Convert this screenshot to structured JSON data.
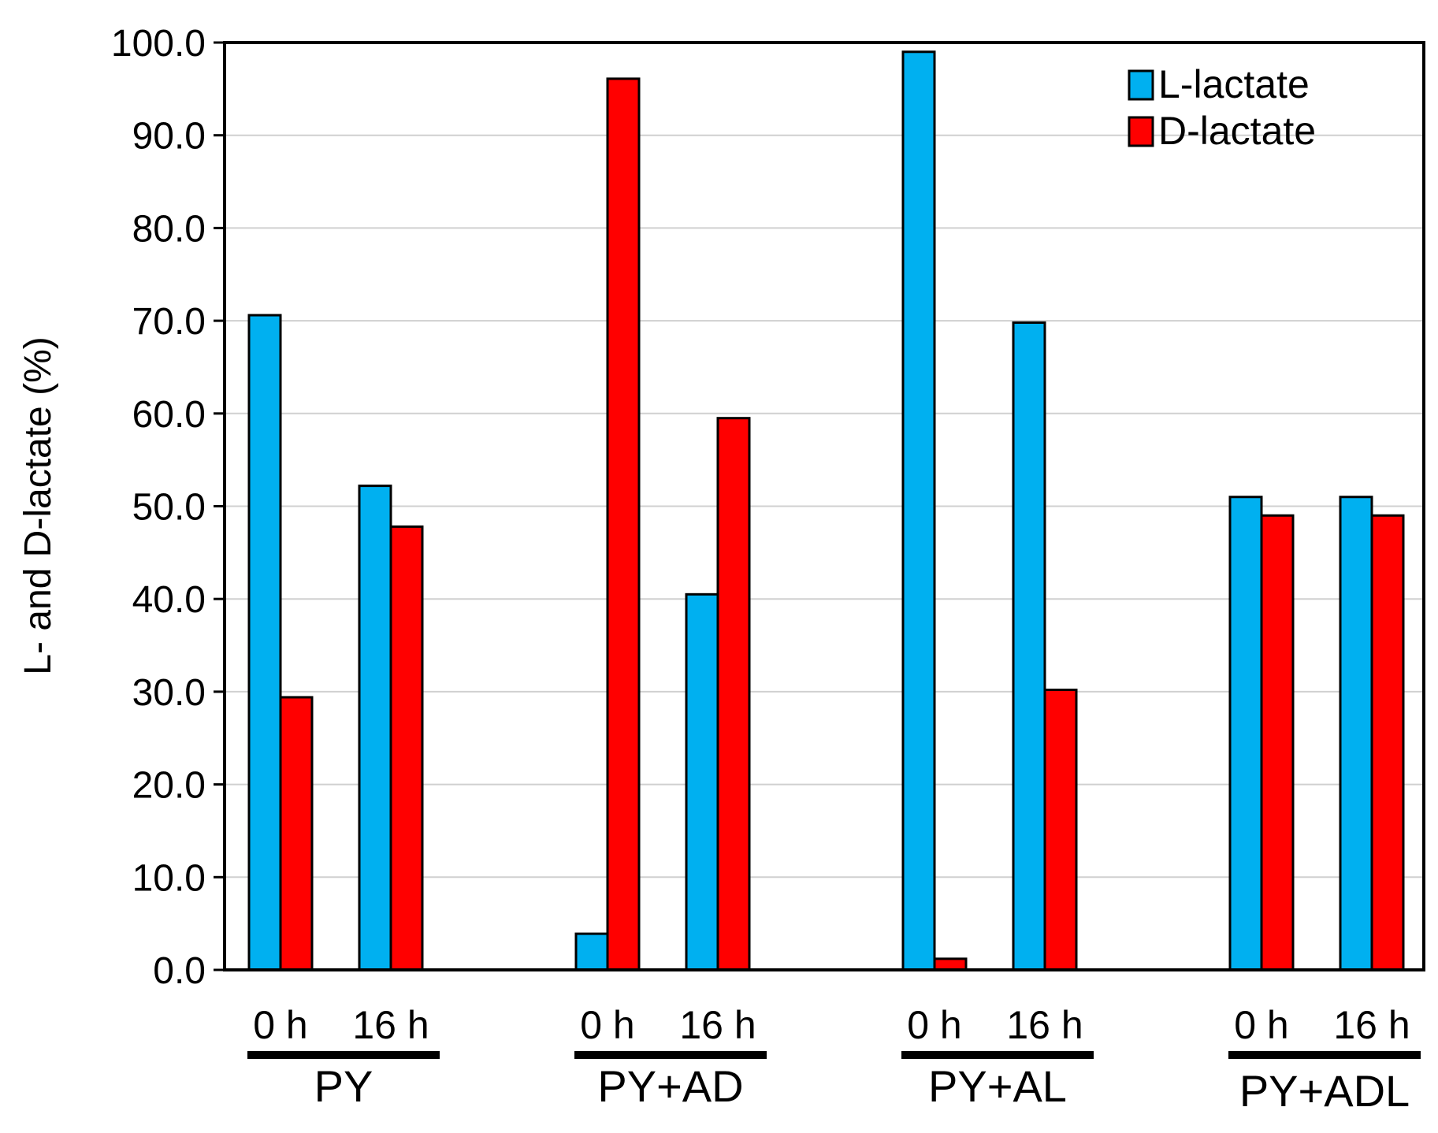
{
  "chart_data": {
    "type": "bar",
    "title": "",
    "ylabel": "L- and D-lactate (%)",
    "xlabel": "",
    "ylim": [
      0,
      100
    ],
    "y_ticks": [
      "0.0",
      "10.0",
      "20.0",
      "30.0",
      "40.0",
      "50.0",
      "60.0",
      "70.0",
      "80.0",
      "90.0",
      "100.0"
    ],
    "grid": "horizontal",
    "legend_position": "top-right",
    "groups": [
      {
        "label": "PY",
        "times": [
          "0 h",
          "16 h"
        ],
        "series": [
          {
            "name": "L-lactate",
            "values": [
              70.6,
              52.2
            ]
          },
          {
            "name": "D-lactate",
            "values": [
              29.4,
              47.8
            ]
          }
        ]
      },
      {
        "label": "PY+AD",
        "times": [
          "0 h",
          "16 h"
        ],
        "series": [
          {
            "name": "L-lactate",
            "values": [
              3.9,
              40.5
            ]
          },
          {
            "name": "D-lactate",
            "values": [
              96.1,
              59.5
            ]
          }
        ]
      },
      {
        "label": "PY+AL",
        "times": [
          "0 h",
          "16 h"
        ],
        "series": [
          {
            "name": "L-lactate",
            "values": [
              99.0,
              69.8
            ]
          },
          {
            "name": "D-lactate",
            "values": [
              1.2,
              30.2
            ]
          }
        ]
      },
      {
        "label": "PY+ADL",
        "times": [
          "0 h",
          "16 h"
        ],
        "series": [
          {
            "name": "L-lactate",
            "values": [
              51.0,
              51.0
            ]
          },
          {
            "name": "D-lactate",
            "values": [
              49.0,
              49.0
            ]
          }
        ]
      }
    ],
    "legend": [
      {
        "name": "L-lactate",
        "color": "#00b0f0"
      },
      {
        "name": "D-lactate",
        "color": "#ff0000"
      }
    ]
  }
}
